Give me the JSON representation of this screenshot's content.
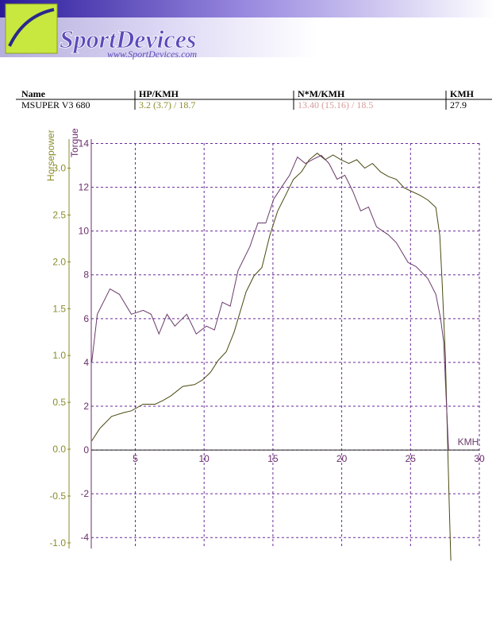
{
  "header": {
    "brand": "SportDevices",
    "url": "www.SportDevices.com"
  },
  "table": {
    "columns": [
      "Name",
      "HP/KMH",
      "N*M/KMH",
      "KMH"
    ],
    "rows": [
      [
        "MSUPER V3 680",
        "3.2 (3.7) / 18.7",
        "13.40 (15.16) / 18.5",
        "27.9"
      ]
    ]
  },
  "chart_data": {
    "type": "line",
    "x_label": "KMH",
    "xlim": [
      1.8,
      30
    ],
    "xticks": [
      5,
      10,
      15,
      20,
      25,
      30
    ],
    "ylim": [
      -1.06,
      3.31
    ],
    "yticks": [
      {
        "value": -1,
        "label": "-1.0"
      },
      -0.5,
      {
        "value": 0,
        "label": "0.0"
      },
      0.5,
      {
        "value": 1,
        "label": "1.0"
      },
      1.5,
      {
        "value": 2,
        "label": "2.0"
      },
      2.5,
      {
        "value": 3,
        "label": "3.0"
      }
    ],
    "y2lim": [
      -4.5,
      14.2
    ],
    "y2ticks": [
      -4,
      -2,
      0,
      2,
      4,
      6,
      8,
      10,
      12,
      14
    ],
    "grid": true,
    "series": [
      {
        "name": "Horsepower",
        "color": "#4a4a12",
        "axis": "y",
        "x": [
          1.84,
          2.41,
          3.28,
          4.14,
          4.71,
          5.57,
          6.44,
          7.01,
          7.59,
          8.45,
          9.31,
          9.89,
          10.46,
          11.03,
          11.61,
          12.18,
          13.05,
          13.62,
          14.2,
          14.77,
          15.34,
          15.92,
          16.49,
          17.07,
          17.64,
          18.22,
          18.79,
          19.37,
          19.94,
          20.52,
          21.09,
          21.67,
          22.24,
          22.82,
          23.39,
          23.97,
          24.54,
          25.11,
          25.69,
          26.26,
          26.84,
          27.13,
          27.3,
          27.53,
          27.7,
          27.82,
          27.93
        ],
        "values": [
          0.09,
          0.22,
          0.35,
          0.39,
          0.41,
          0.48,
          0.48,
          0.52,
          0.57,
          0.67,
          0.69,
          0.74,
          0.82,
          0.95,
          1.04,
          1.25,
          1.68,
          1.85,
          1.94,
          2.28,
          2.54,
          2.71,
          2.88,
          2.96,
          3.09,
          3.16,
          3.09,
          3.14,
          3.09,
          3.05,
          3.09,
          3.0,
          3.05,
          2.96,
          2.91,
          2.88,
          2.79,
          2.75,
          2.71,
          2.66,
          2.58,
          2.28,
          1.77,
          0.99,
          0.05,
          -0.63,
          -1.19
        ]
      },
      {
        "name": "Torque",
        "color": "#6a3a6a",
        "axis": "y2",
        "x": [
          1.84,
          2.24,
          3.16,
          3.85,
          4.71,
          5.57,
          6.15,
          6.72,
          7.3,
          7.87,
          8.74,
          9.43,
          10.17,
          10.75,
          11.32,
          11.9,
          12.47,
          13.33,
          13.91,
          14.48,
          15.06,
          15.63,
          16.21,
          16.78,
          17.36,
          17.93,
          18.51,
          19.08,
          19.66,
          20.23,
          20.8,
          21.38,
          21.95,
          22.53,
          23.39,
          23.97,
          24.83,
          25.4,
          26.26,
          26.84,
          27.18,
          27.41,
          27.59,
          27.76
        ],
        "values": [
          4.03,
          6.2,
          7.36,
          7.11,
          6.2,
          6.38,
          6.2,
          5.3,
          6.2,
          5.66,
          6.2,
          5.3,
          5.66,
          5.48,
          6.75,
          6.57,
          8.2,
          9.29,
          10.37,
          10.37,
          11.46,
          12.01,
          12.55,
          13.38,
          13.09,
          13.28,
          13.46,
          13.09,
          12.37,
          12.55,
          11.82,
          10.92,
          11.1,
          10.19,
          9.83,
          9.47,
          8.56,
          8.38,
          7.83,
          7.11,
          6.02,
          4.93,
          2.39,
          0
        ]
      }
    ]
  }
}
